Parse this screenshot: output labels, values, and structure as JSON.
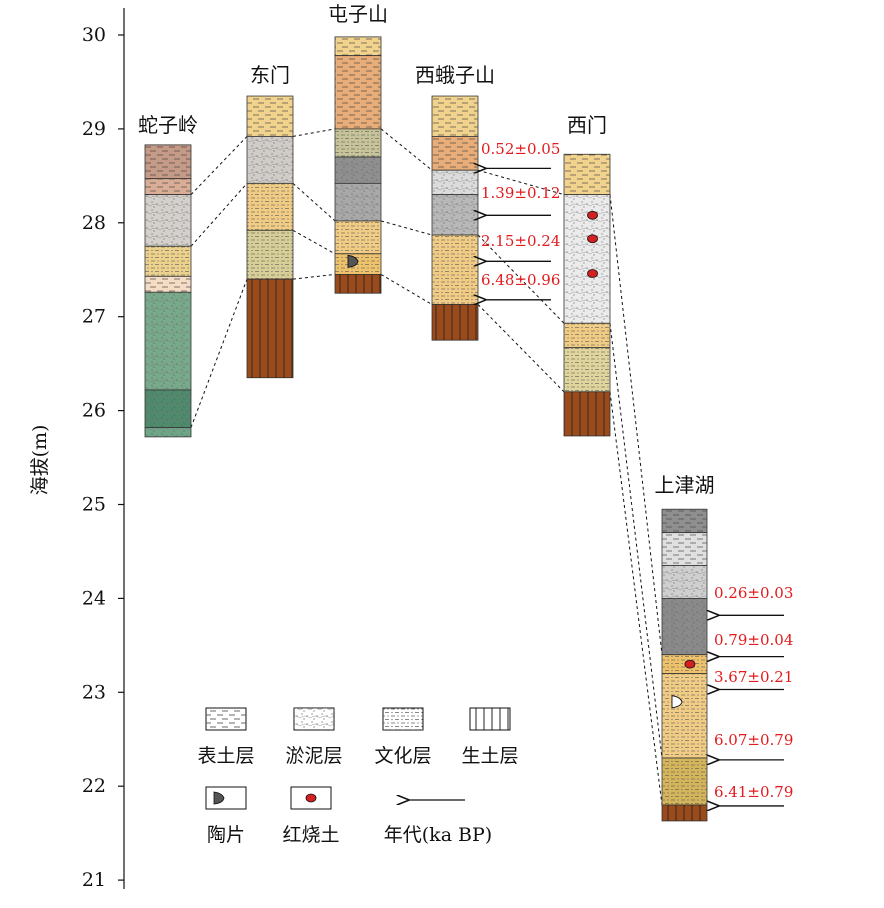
{
  "axis": {
    "ylabel": "海拔(m)",
    "range": [
      21,
      30
    ],
    "ticks": [
      30,
      29,
      28,
      27,
      26,
      25,
      24,
      23,
      22,
      21
    ]
  },
  "columns": [
    {
      "id": "shezi",
      "name": "蛇子岭",
      "layers": [
        {
          "top": 28.83,
          "bottom": 28.47,
          "type": "biaotu",
          "color": "#c59a86"
        },
        {
          "top": 28.47,
          "bottom": 28.3,
          "type": "biaotu",
          "color": "#d9ad96"
        },
        {
          "top": 28.3,
          "bottom": 27.75,
          "type": "yuni",
          "color": "#d4d0cc"
        },
        {
          "top": 27.75,
          "bottom": 27.43,
          "type": "wenhua",
          "color": "#ecd28d"
        },
        {
          "top": 27.43,
          "bottom": 27.26,
          "type": "biaotu",
          "color": "#f5dcc4"
        },
        {
          "top": 27.26,
          "bottom": 26.22,
          "type": "yuni",
          "color": "#78a98b"
        },
        {
          "top": 26.22,
          "bottom": 25.82,
          "type": "yuni",
          "color": "#4f8a6d"
        },
        {
          "top": 25.82,
          "bottom": 25.72,
          "type": "yuni",
          "color": "#6fa587"
        }
      ],
      "markers": []
    },
    {
      "id": "dongmen",
      "name": "东门",
      "layers": [
        {
          "top": 29.35,
          "bottom": 28.92,
          "type": "biaotu",
          "color": "#f1d38e"
        },
        {
          "top": 28.92,
          "bottom": 28.42,
          "type": "yuni",
          "color": "#d0ccc8"
        },
        {
          "top": 28.42,
          "bottom": 27.92,
          "type": "wenhua",
          "color": "#f0cc85"
        },
        {
          "top": 27.92,
          "bottom": 27.4,
          "type": "wenhua",
          "color": "#d8cf98"
        },
        {
          "top": 27.4,
          "bottom": 26.35,
          "type": "shengtu",
          "color": "#9a4a1b"
        }
      ],
      "markers": []
    },
    {
      "id": "tunzi",
      "name": "屯子山",
      "layers": [
        {
          "top": 29.98,
          "bottom": 29.78,
          "type": "biaotu",
          "color": "#f1d38e"
        },
        {
          "top": 29.78,
          "bottom": 29.0,
          "type": "biaotu",
          "color": "#e8ad78"
        },
        {
          "top": 29.0,
          "bottom": 28.7,
          "type": "wenhua",
          "color": "#c8c49a"
        },
        {
          "top": 28.7,
          "bottom": 28.42,
          "type": "yuni",
          "color": "#8f8f8f"
        },
        {
          "top": 28.42,
          "bottom": 28.02,
          "type": "yuni",
          "color": "#a8a8a8"
        },
        {
          "top": 28.02,
          "bottom": 27.67,
          "type": "wenhua",
          "color": "#f0cc85"
        },
        {
          "top": 27.67,
          "bottom": 27.45,
          "type": "wenhua",
          "color": "#efc36c"
        },
        {
          "top": 27.45,
          "bottom": 27.25,
          "type": "shengtu",
          "color": "#9a4a1b"
        }
      ],
      "markers": [
        {
          "type": "sherd",
          "elev": 27.59
        }
      ]
    },
    {
      "id": "xie",
      "name": "西蛾子山",
      "layers": [
        {
          "top": 29.35,
          "bottom": 28.92,
          "type": "biaotu",
          "color": "#f1d38e"
        },
        {
          "top": 28.92,
          "bottom": 28.56,
          "type": "biaotu",
          "color": "#e8ad78"
        },
        {
          "top": 28.56,
          "bottom": 28.3,
          "type": "yuni",
          "color": "#dcdcdc"
        },
        {
          "top": 28.3,
          "bottom": 27.87,
          "type": "yuni",
          "color": "#b8b8b8"
        },
        {
          "top": 27.87,
          "bottom": 27.13,
          "type": "wenhua",
          "color": "#f0cc85"
        },
        {
          "top": 27.13,
          "bottom": 26.75,
          "type": "shengtu",
          "color": "#9a4a1b"
        }
      ],
      "markers": [],
      "dates": [
        "0.52±0.05",
        "1.39±0.12",
        "2.15±0.24",
        "6.48±0.96"
      ]
    },
    {
      "id": "ximen",
      "name": "西门",
      "layers": [
        {
          "top": 28.73,
          "bottom": 28.3,
          "type": "biaotu",
          "color": "#f1d38e"
        },
        {
          "top": 28.3,
          "bottom": 26.93,
          "type": "yuni",
          "color": "#ebebeb"
        },
        {
          "top": 26.93,
          "bottom": 26.67,
          "type": "wenhua",
          "color": "#f0cc85"
        },
        {
          "top": 26.67,
          "bottom": 26.2,
          "type": "wenhua",
          "color": "#e1d59e"
        },
        {
          "top": 26.2,
          "bottom": 25.73,
          "type": "shengtu",
          "color": "#9a4a1b"
        }
      ],
      "markers": [
        {
          "type": "redclay",
          "elev": 28.08
        },
        {
          "type": "redclay",
          "elev": 27.83
        },
        {
          "type": "redclay",
          "elev": 27.46
        }
      ]
    },
    {
      "id": "shangjinhu",
      "name": "上津湖",
      "layers": [
        {
          "top": 24.95,
          "bottom": 24.7,
          "type": "biaotu",
          "color": "#8f8f8f"
        },
        {
          "top": 24.7,
          "bottom": 24.35,
          "type": "biaotu",
          "color": "#e0e0e0"
        },
        {
          "top": 24.35,
          "bottom": 24.0,
          "type": "yuni",
          "color": "#cfcfcf"
        },
        {
          "top": 24.0,
          "bottom": 23.4,
          "type": "yuni",
          "color": "#8a8a8a"
        },
        {
          "top": 23.4,
          "bottom": 23.2,
          "type": "wenhua",
          "color": "#efc36c"
        },
        {
          "top": 23.2,
          "bottom": 22.3,
          "type": "wenhua",
          "color": "#f0cc85"
        },
        {
          "top": 22.3,
          "bottom": 21.8,
          "type": "wenhua",
          "color": "#d4b55c"
        },
        {
          "top": 21.8,
          "bottom": 21.63,
          "type": "shengtu",
          "color": "#9a4a1b"
        }
      ],
      "markers": [
        {
          "type": "redclay",
          "elev": 23.3
        },
        {
          "type": "sherd_white",
          "elev": 22.9
        }
      ],
      "dates": [
        "0.26±0.03",
        "0.79±0.04",
        "3.67±0.21",
        "6.07±0.79",
        "6.41±0.79"
      ]
    }
  ],
  "legend": {
    "items": [
      {
        "id": "biaotu",
        "label": "表土层"
      },
      {
        "id": "yuni",
        "label": "淤泥层"
      },
      {
        "id": "wenhua",
        "label": "文化层"
      },
      {
        "id": "shengtu",
        "label": "生土层"
      },
      {
        "id": "sherd",
        "label": "陶片"
      },
      {
        "id": "redclay",
        "label": "红烧土"
      },
      {
        "id": "arrow",
        "label": "年代(ka BP)"
      }
    ]
  },
  "colors": {
    "date_text": "#e41a1c",
    "red_clay": "#d42020",
    "sherd": "#555555",
    "shengtu": "#9a4a1b"
  }
}
